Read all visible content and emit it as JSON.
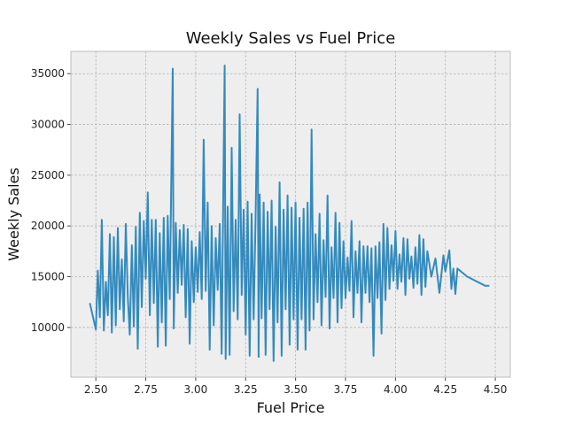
{
  "chart_data": {
    "type": "line",
    "title": "Weekly Sales vs Fuel Price",
    "xlabel": "Fuel Price",
    "ylabel": "Weekly Sales",
    "xlim": [
      2.375,
      4.575
    ],
    "ylim": [
      5100,
      37200
    ],
    "xticks": [
      2.5,
      2.75,
      3.0,
      3.25,
      3.5,
      3.75,
      4.0,
      4.25,
      4.5
    ],
    "xtick_labels": [
      "2.50",
      "2.75",
      "3.00",
      "3.25",
      "3.50",
      "3.75",
      "4.00",
      "4.25",
      "4.50"
    ],
    "yticks": [
      10000,
      15000,
      20000,
      25000,
      30000,
      35000
    ],
    "ytick_labels": [
      "10000",
      "15000",
      "20000",
      "25000",
      "30000",
      "35000"
    ],
    "grid": true,
    "colors": {
      "line": "#348abd",
      "plot_background": "#eeeeee",
      "grid": "#b2b2b2",
      "frame": "#bcbcbc"
    },
    "series": [
      {
        "points": [
          [
            2.47,
            12400
          ],
          [
            2.5,
            9800
          ],
          [
            2.51,
            15600
          ],
          [
            2.52,
            11000
          ],
          [
            2.53,
            20600
          ],
          [
            2.54,
            9700
          ],
          [
            2.55,
            14500
          ],
          [
            2.56,
            11200
          ],
          [
            2.57,
            19200
          ],
          [
            2.58,
            9500
          ],
          [
            2.59,
            18900
          ],
          [
            2.6,
            10200
          ],
          [
            2.61,
            19800
          ],
          [
            2.62,
            11800
          ],
          [
            2.63,
            16700
          ],
          [
            2.64,
            10600
          ],
          [
            2.65,
            20200
          ],
          [
            2.66,
            12900
          ],
          [
            2.67,
            9300
          ],
          [
            2.68,
            18100
          ],
          [
            2.69,
            10100
          ],
          [
            2.7,
            19900
          ],
          [
            2.71,
            7900
          ],
          [
            2.72,
            21300
          ],
          [
            2.73,
            12000
          ],
          [
            2.74,
            20500
          ],
          [
            2.75,
            14800
          ],
          [
            2.76,
            23300
          ],
          [
            2.77,
            11200
          ],
          [
            2.78,
            20600
          ],
          [
            2.79,
            12400
          ],
          [
            2.8,
            20600
          ],
          [
            2.81,
            8100
          ],
          [
            2.82,
            19300
          ],
          [
            2.83,
            10500
          ],
          [
            2.84,
            20800
          ],
          [
            2.85,
            8200
          ],
          [
            2.86,
            21000
          ],
          [
            2.87,
            12800
          ],
          [
            2.875,
            20300
          ],
          [
            2.885,
            35500
          ],
          [
            2.89,
            9900
          ],
          [
            2.9,
            20300
          ],
          [
            2.91,
            13400
          ],
          [
            2.92,
            19600
          ],
          [
            2.93,
            14200
          ],
          [
            2.94,
            20100
          ],
          [
            2.95,
            11000
          ],
          [
            2.96,
            19700
          ],
          [
            2.97,
            8400
          ],
          [
            2.98,
            18500
          ],
          [
            2.99,
            12500
          ],
          [
            3.0,
            17900
          ],
          [
            3.01,
            13500
          ],
          [
            3.02,
            19400
          ],
          [
            3.03,
            12800
          ],
          [
            3.04,
            28500
          ],
          [
            3.05,
            13600
          ],
          [
            3.06,
            22300
          ],
          [
            3.07,
            7800
          ],
          [
            3.08,
            20000
          ],
          [
            3.09,
            10200
          ],
          [
            3.1,
            18800
          ],
          [
            3.11,
            13700
          ],
          [
            3.12,
            20200
          ],
          [
            3.13,
            7400
          ],
          [
            3.14,
            27200
          ],
          [
            3.145,
            35800
          ],
          [
            3.15,
            6900
          ],
          [
            3.16,
            21900
          ],
          [
            3.17,
            7300
          ],
          [
            3.18,
            27700
          ],
          [
            3.19,
            11600
          ],
          [
            3.2,
            20600
          ],
          [
            3.21,
            10800
          ],
          [
            3.22,
            31000
          ],
          [
            3.23,
            13200
          ],
          [
            3.24,
            21600
          ],
          [
            3.25,
            9300
          ],
          [
            3.26,
            22400
          ],
          [
            3.27,
            7200
          ],
          [
            3.28,
            21200
          ],
          [
            3.29,
            10800
          ],
          [
            3.3,
            20900
          ],
          [
            3.31,
            33500
          ],
          [
            3.315,
            7100
          ],
          [
            3.32,
            23100
          ],
          [
            3.33,
            10900
          ],
          [
            3.34,
            22300
          ],
          [
            3.35,
            7300
          ],
          [
            3.36,
            21400
          ],
          [
            3.37,
            11800
          ],
          [
            3.38,
            22500
          ],
          [
            3.39,
            6700
          ],
          [
            3.4,
            19900
          ],
          [
            3.41,
            10500
          ],
          [
            3.42,
            24300
          ],
          [
            3.43,
            7200
          ],
          [
            3.44,
            21600
          ],
          [
            3.45,
            11800
          ],
          [
            3.46,
            23000
          ],
          [
            3.47,
            8300
          ],
          [
            3.48,
            21800
          ],
          [
            3.49,
            10800
          ],
          [
            3.5,
            22300
          ],
          [
            3.51,
            7800
          ],
          [
            3.52,
            20800
          ],
          [
            3.53,
            10800
          ],
          [
            3.54,
            21700
          ],
          [
            3.55,
            7800
          ],
          [
            3.56,
            22300
          ],
          [
            3.57,
            9700
          ],
          [
            3.58,
            29500
          ],
          [
            3.59,
            10800
          ],
          [
            3.6,
            19200
          ],
          [
            3.61,
            12500
          ],
          [
            3.62,
            21200
          ],
          [
            3.63,
            10200
          ],
          [
            3.64,
            18600
          ],
          [
            3.65,
            13000
          ],
          [
            3.66,
            23000
          ],
          [
            3.67,
            9900
          ],
          [
            3.68,
            17900
          ],
          [
            3.69,
            12900
          ],
          [
            3.7,
            21300
          ],
          [
            3.71,
            10500
          ],
          [
            3.72,
            20300
          ],
          [
            3.73,
            11900
          ],
          [
            3.74,
            18500
          ],
          [
            3.75,
            12900
          ],
          [
            3.76,
            16900
          ],
          [
            3.77,
            13600
          ],
          [
            3.78,
            20500
          ],
          [
            3.79,
            11000
          ],
          [
            3.8,
            17500
          ],
          [
            3.81,
            13400
          ],
          [
            3.82,
            18500
          ],
          [
            3.83,
            10500
          ],
          [
            3.84,
            18000
          ],
          [
            3.85,
            13400
          ],
          [
            3.86,
            18000
          ],
          [
            3.87,
            12500
          ],
          [
            3.88,
            17800
          ],
          [
            3.89,
            7200
          ],
          [
            3.9,
            18000
          ],
          [
            3.91,
            12900
          ],
          [
            3.92,
            18400
          ],
          [
            3.93,
            9400
          ],
          [
            3.94,
            20200
          ],
          [
            3.95,
            12700
          ],
          [
            3.96,
            19800
          ],
          [
            3.97,
            13800
          ],
          [
            3.98,
            18100
          ],
          [
            3.99,
            14600
          ],
          [
            4.0,
            19500
          ],
          [
            4.01,
            13800
          ],
          [
            4.02,
            17200
          ],
          [
            4.03,
            14500
          ],
          [
            4.04,
            18800
          ],
          [
            4.05,
            13200
          ],
          [
            4.06,
            18700
          ],
          [
            4.07,
            14800
          ],
          [
            4.08,
            17000
          ],
          [
            4.09,
            13900
          ],
          [
            4.1,
            17900
          ],
          [
            4.11,
            14300
          ],
          [
            4.12,
            19100
          ],
          [
            4.13,
            13200
          ],
          [
            4.14,
            18700
          ],
          [
            4.15,
            14000
          ],
          [
            4.16,
            17500
          ],
          [
            4.18,
            15000
          ],
          [
            4.2,
            16800
          ],
          [
            4.22,
            13400
          ],
          [
            4.24,
            17100
          ],
          [
            4.25,
            15500
          ],
          [
            4.27,
            17600
          ],
          [
            4.28,
            13800
          ],
          [
            4.29,
            15800
          ],
          [
            4.3,
            13300
          ],
          [
            4.31,
            15800
          ],
          [
            4.36,
            15000
          ],
          [
            4.45,
            14100
          ],
          [
            4.47,
            14100
          ]
        ]
      }
    ]
  }
}
